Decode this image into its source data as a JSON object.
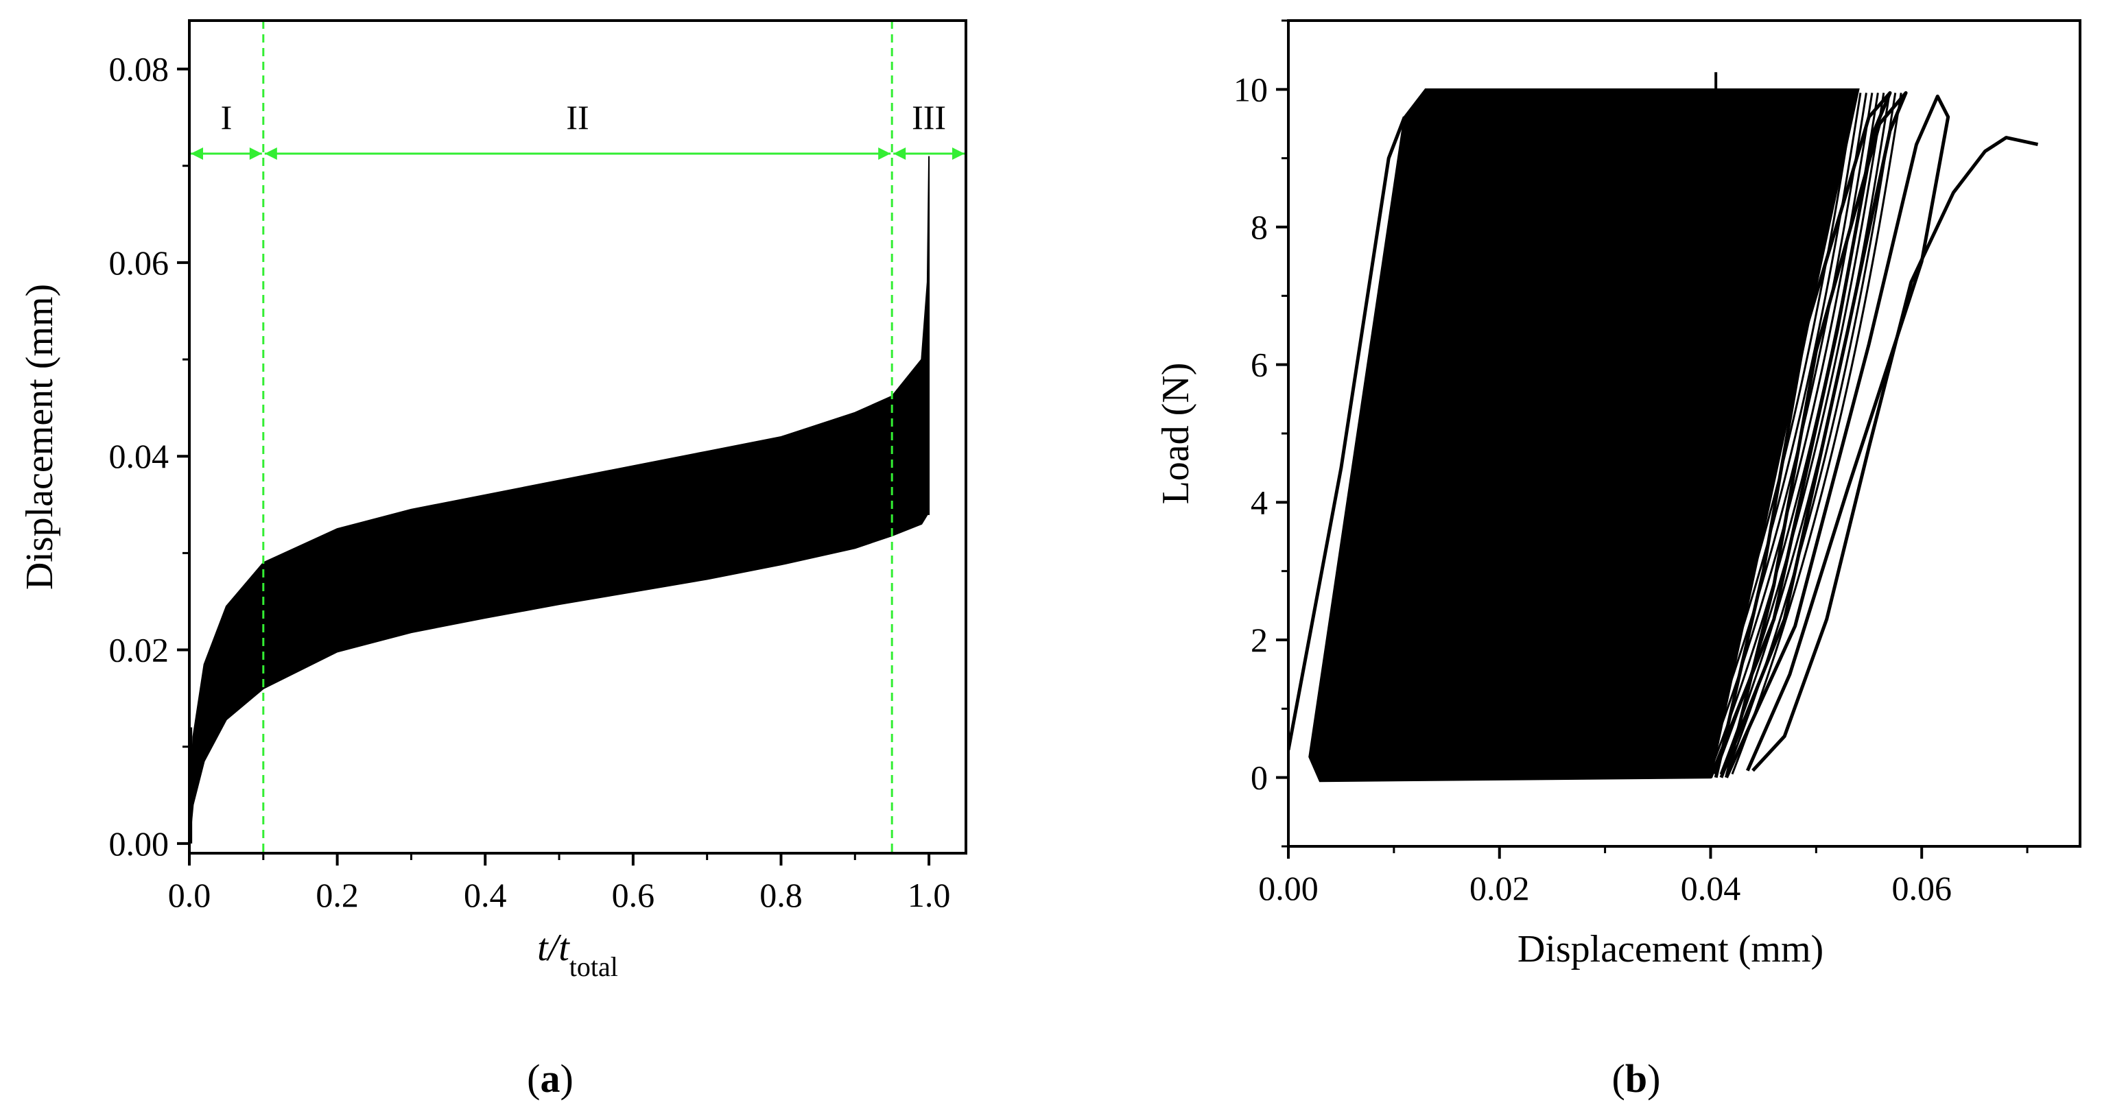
{
  "chart_data": [
    {
      "type": "area",
      "panel_label": "(a)",
      "panel_letter": "a",
      "xlabel": {
        "main": "t/t",
        "sub": "total"
      },
      "ylabel": "Displacement (mm)",
      "xlim": [
        0.0,
        1.05
      ],
      "ylim": [
        -0.001,
        0.085
      ],
      "xticks": [
        "0.0",
        "0.2",
        "0.4",
        "0.6",
        "0.8",
        "1.0"
      ],
      "xtick_values": [
        0.0,
        0.2,
        0.4,
        0.6,
        0.8,
        1.0
      ],
      "yticks": [
        "0.00",
        "0.02",
        "0.04",
        "0.06",
        "0.08"
      ],
      "ytick_values": [
        0.0,
        0.02,
        0.04,
        0.06,
        0.08
      ],
      "grid": false,
      "stage_boundaries": [
        0.1,
        0.95
      ],
      "stage_color": "#33ee33",
      "regions": [
        "I",
        "II",
        "III"
      ],
      "series_color": "#000000",
      "band": {
        "x": [
          0.0,
          0.005,
          0.02,
          0.05,
          0.1,
          0.2,
          0.3,
          0.4,
          0.5,
          0.6,
          0.7,
          0.8,
          0.9,
          0.95,
          0.99,
          0.998,
          1.0
        ],
        "upper": [
          0.0,
          0.011,
          0.0185,
          0.0245,
          0.029,
          0.0325,
          0.0345,
          0.036,
          0.0375,
          0.039,
          0.0405,
          0.042,
          0.0445,
          0.0462,
          0.05,
          0.058,
          0.071
        ],
        "lower": [
          0.0,
          0.004,
          0.0085,
          0.0128,
          0.016,
          0.0198,
          0.0218,
          0.0233,
          0.0247,
          0.026,
          0.0273,
          0.0288,
          0.0305,
          0.0318,
          0.033,
          0.034,
          0.034
        ]
      }
    },
    {
      "type": "line",
      "panel_label": "(b)",
      "panel_letter": "b",
      "xlabel": "Displacement (mm)",
      "ylabel": "Load (N)",
      "xlim": [
        0.0,
        0.075
      ],
      "ylim": [
        -1,
        11
      ],
      "xticks": [
        "0.00",
        "0.02",
        "0.04",
        "0.06"
      ],
      "xtick_values": [
        0.0,
        0.02,
        0.04,
        0.06
      ],
      "yticks": [
        "0",
        "2",
        "4",
        "6",
        "8",
        "10"
      ],
      "ytick_values": [
        0,
        2,
        4,
        6,
        8,
        10
      ],
      "grid": false,
      "series_color": "#000000",
      "hysteresis_band": {
        "loop_count": 12,
        "x_left_bottom": 0.002,
        "x_right_bottom": 0.04,
        "x_left_top": 0.011,
        "x_right_top": 0.054,
        "load_min": 0.0,
        "load_max": 10.0
      },
      "first_loading": {
        "displacement": [
          0.0,
          0.005,
          0.0095,
          0.011
        ],
        "load": [
          0.4,
          4.5,
          9.0,
          9.6
        ]
      },
      "final_loops": [
        {
          "displacement": [
            0.04,
            0.046,
            0.052,
            0.0555,
            0.057,
            0.055,
            0.049,
            0.045,
            0.0405
          ],
          "load": [
            0.0,
            2.3,
            6.5,
            9.4,
            9.95,
            9.6,
            6.5,
            3.0,
            0.0
          ]
        },
        {
          "displacement": [
            0.041,
            0.047,
            0.053,
            0.057,
            0.0585,
            0.056,
            0.05,
            0.046,
            0.0415
          ],
          "load": [
            0.0,
            2.3,
            6.5,
            9.4,
            9.95,
            9.5,
            6.2,
            2.8,
            0.0
          ]
        },
        {
          "displacement": [
            0.0415,
            0.048,
            0.055,
            0.0595,
            0.0615,
            0.0625,
            0.06,
            0.053,
            0.0475,
            0.0435
          ],
          "load": [
            0.0,
            2.2,
            6.3,
            9.2,
            9.9,
            9.6,
            7.5,
            4.2,
            1.5,
            0.1
          ]
        }
      ],
      "final_fracture": {
        "displacement": [
          0.044,
          0.047,
          0.051,
          0.055,
          0.059,
          0.063,
          0.066,
          0.068,
          0.0695,
          0.071
        ],
        "load": [
          0.1,
          0.6,
          2.3,
          4.8,
          7.2,
          8.5,
          9.1,
          9.3,
          9.25,
          9.2
        ]
      }
    }
  ]
}
